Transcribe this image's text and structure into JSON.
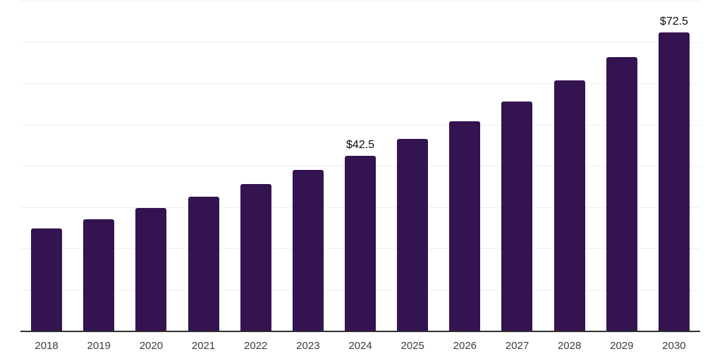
{
  "chart_data": {
    "type": "bar",
    "title": "",
    "xlabel": "",
    "ylabel": "",
    "categories": [
      "2018",
      "2019",
      "2020",
      "2021",
      "2022",
      "2023",
      "2024",
      "2025",
      "2026",
      "2027",
      "2028",
      "2029",
      "2030"
    ],
    "values": [
      25.0,
      27.2,
      29.9,
      32.7,
      35.8,
      39.1,
      42.5,
      46.6,
      50.9,
      55.7,
      60.9,
      66.5,
      72.5
    ],
    "data_labels": {
      "2024": "$42.5",
      "2030": "$72.5"
    },
    "ylim": [
      0,
      80
    ],
    "grid": true,
    "gridline_values": [
      10,
      20,
      30,
      40,
      50,
      60,
      70,
      80
    ],
    "legend": "none",
    "colors": {
      "bar": "#341351",
      "gridline": "#efefef",
      "axis": "#2f2f2f",
      "tick_label": "#3d3d3d",
      "data_label": "#0a0a0a",
      "background": "#ffffff"
    }
  }
}
